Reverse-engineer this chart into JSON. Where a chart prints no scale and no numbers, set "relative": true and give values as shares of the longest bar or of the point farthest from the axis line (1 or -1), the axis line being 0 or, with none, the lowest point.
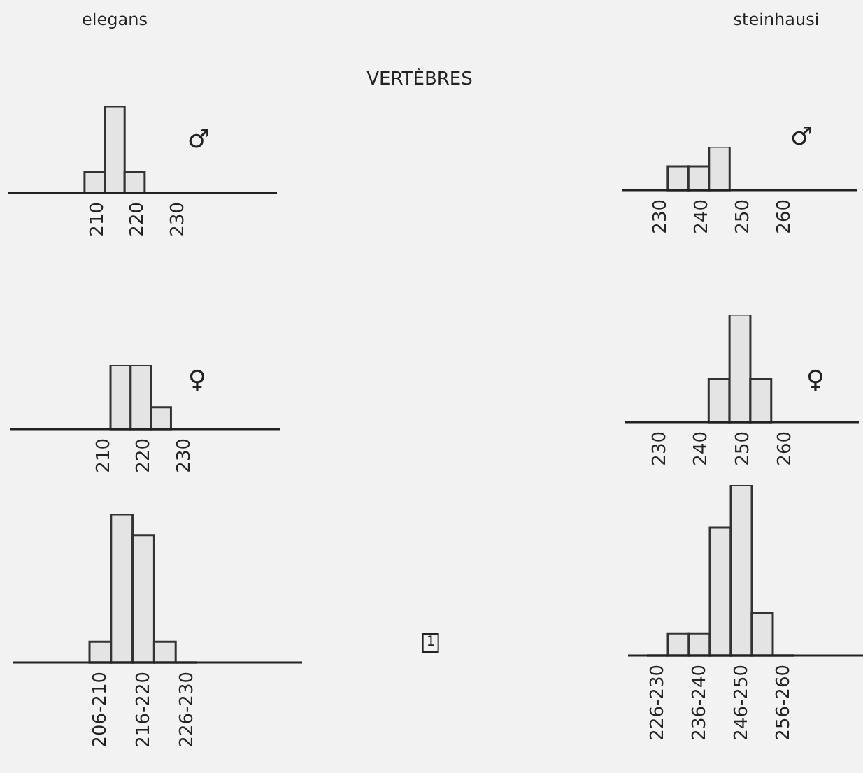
{
  "chart_data": [
    {
      "type": "bar",
      "title": "elegans",
      "annotations": [
        "♂",
        "VERTÈBRES"
      ],
      "relative": true,
      "x": [
        209.5,
        214.5,
        219.5
      ],
      "values": [
        0.24,
        1,
        0.24
      ],
      "color": "#333333",
      "xlim": [
        188,
        255
      ],
      "xticks": [
        210,
        220,
        230
      ]
    },
    {
      "type": "bar",
      "title": "steinhausi",
      "annotations": [
        "♂"
      ],
      "relative": true,
      "x": [
        234.5,
        239.5,
        244.5
      ],
      "values": [
        0.55,
        0.55,
        1
      ],
      "color": "#333333",
      "xlim": [
        221,
        278
      ],
      "xticks": [
        230,
        240,
        250,
        260
      ]
    },
    {
      "type": "bar",
      "annotations": [
        "♀"
      ],
      "relative": true,
      "x": [
        214.5,
        219.5,
        224.5
      ],
      "values": [
        1,
        1,
        0.34
      ],
      "color": "#333333",
      "xlim": [
        187,
        254
      ],
      "xticks": [
        210,
        220,
        230
      ]
    },
    {
      "type": "bar",
      "annotations": [
        "♀"
      ],
      "relative": true,
      "x": [
        244.5,
        249.5,
        254.5
      ],
      "values": [
        0.4,
        1,
        0.4
      ],
      "color": "#333333",
      "xlim": [
        222,
        278
      ],
      "xticks": [
        230,
        240,
        250,
        260
      ]
    },
    {
      "type": "bar",
      "annotations": [
        "1"
      ],
      "relative": true,
      "categories": [
        "206-210",
        null,
        "216-220",
        null,
        "226-230"
      ],
      "values": [
        0.14,
        1,
        0.86,
        0.14,
        0
      ],
      "color": "#333333"
    },
    {
      "type": "bar",
      "relative": true,
      "categories": [
        "226-230",
        null,
        "236-240",
        null,
        "246-250",
        null,
        "256-260"
      ],
      "values": [
        0,
        0.13,
        0.13,
        0.75,
        1,
        0.25,
        0
      ],
      "color": "#333333"
    }
  ]
}
